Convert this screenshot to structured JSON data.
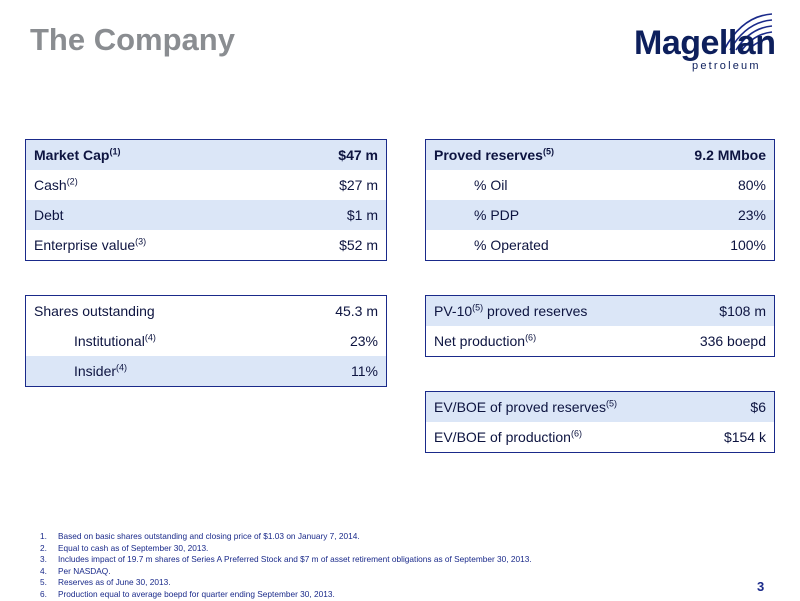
{
  "slide": {
    "title": "The Company",
    "page_number": "3"
  },
  "logo": {
    "word": "Magellan",
    "sub": "petroleum"
  },
  "market_table": {
    "rows": [
      {
        "label": "Market Cap",
        "sup": "(1)",
        "value": "$47 m"
      },
      {
        "label": "Cash",
        "sup": "(2)",
        "value": "$27 m"
      },
      {
        "label": "Debt",
        "sup": "",
        "value": "$1 m"
      },
      {
        "label": "Enterprise value",
        "sup": "(3)",
        "value": "$52 m"
      }
    ]
  },
  "shares_table": {
    "rows": [
      {
        "label": "Shares outstanding",
        "sup": "",
        "value": "45.3 m"
      },
      {
        "label": "Institutional",
        "sup": "(4)",
        "value": "23%"
      },
      {
        "label": "Insider",
        "sup": "(4)",
        "value": "11%"
      }
    ]
  },
  "reserves_table": {
    "rows": [
      {
        "label": "Proved reserves",
        "sup": "(5)",
        "value": "9.2 MMboe"
      },
      {
        "label": "% Oil",
        "sup": "",
        "value": "80%"
      },
      {
        "label": "% PDP",
        "sup": "",
        "value": "23%"
      },
      {
        "label": "% Operated",
        "sup": "",
        "value": "100%"
      }
    ]
  },
  "pv_table": {
    "rows": [
      {
        "label": "PV-10",
        "sup": "(5)",
        "label_rest": " proved reserves",
        "value": "$108 m"
      },
      {
        "label": "Net production",
        "sup": "(6)",
        "label_rest": "",
        "value": "336 boepd"
      }
    ]
  },
  "ev_table": {
    "rows": [
      {
        "label": "EV/BOE of proved reserves",
        "sup": "(5)",
        "value": "$6"
      },
      {
        "label": "EV/BOE of production",
        "sup": "(6)",
        "value": "$154 k"
      }
    ]
  },
  "footnotes": [
    {
      "num": "1.",
      "text": "Based on basic shares outstanding and closing price of $1.03 on January 7, 2014."
    },
    {
      "num": "2.",
      "text": "Equal to cash as of September 30, 2013."
    },
    {
      "num": "3.",
      "text": "Includes impact of 19.7 m shares of Series A Preferred Stock and $7 m of asset retirement obligations as of September 30, 2013."
    },
    {
      "num": "4.",
      "text": "Per NASDAQ."
    },
    {
      "num": "5.",
      "text": "Reserves as of June 30, 2013."
    },
    {
      "num": "6.",
      "text": "Production equal to average boepd for quarter ending September 30, 2013."
    }
  ]
}
